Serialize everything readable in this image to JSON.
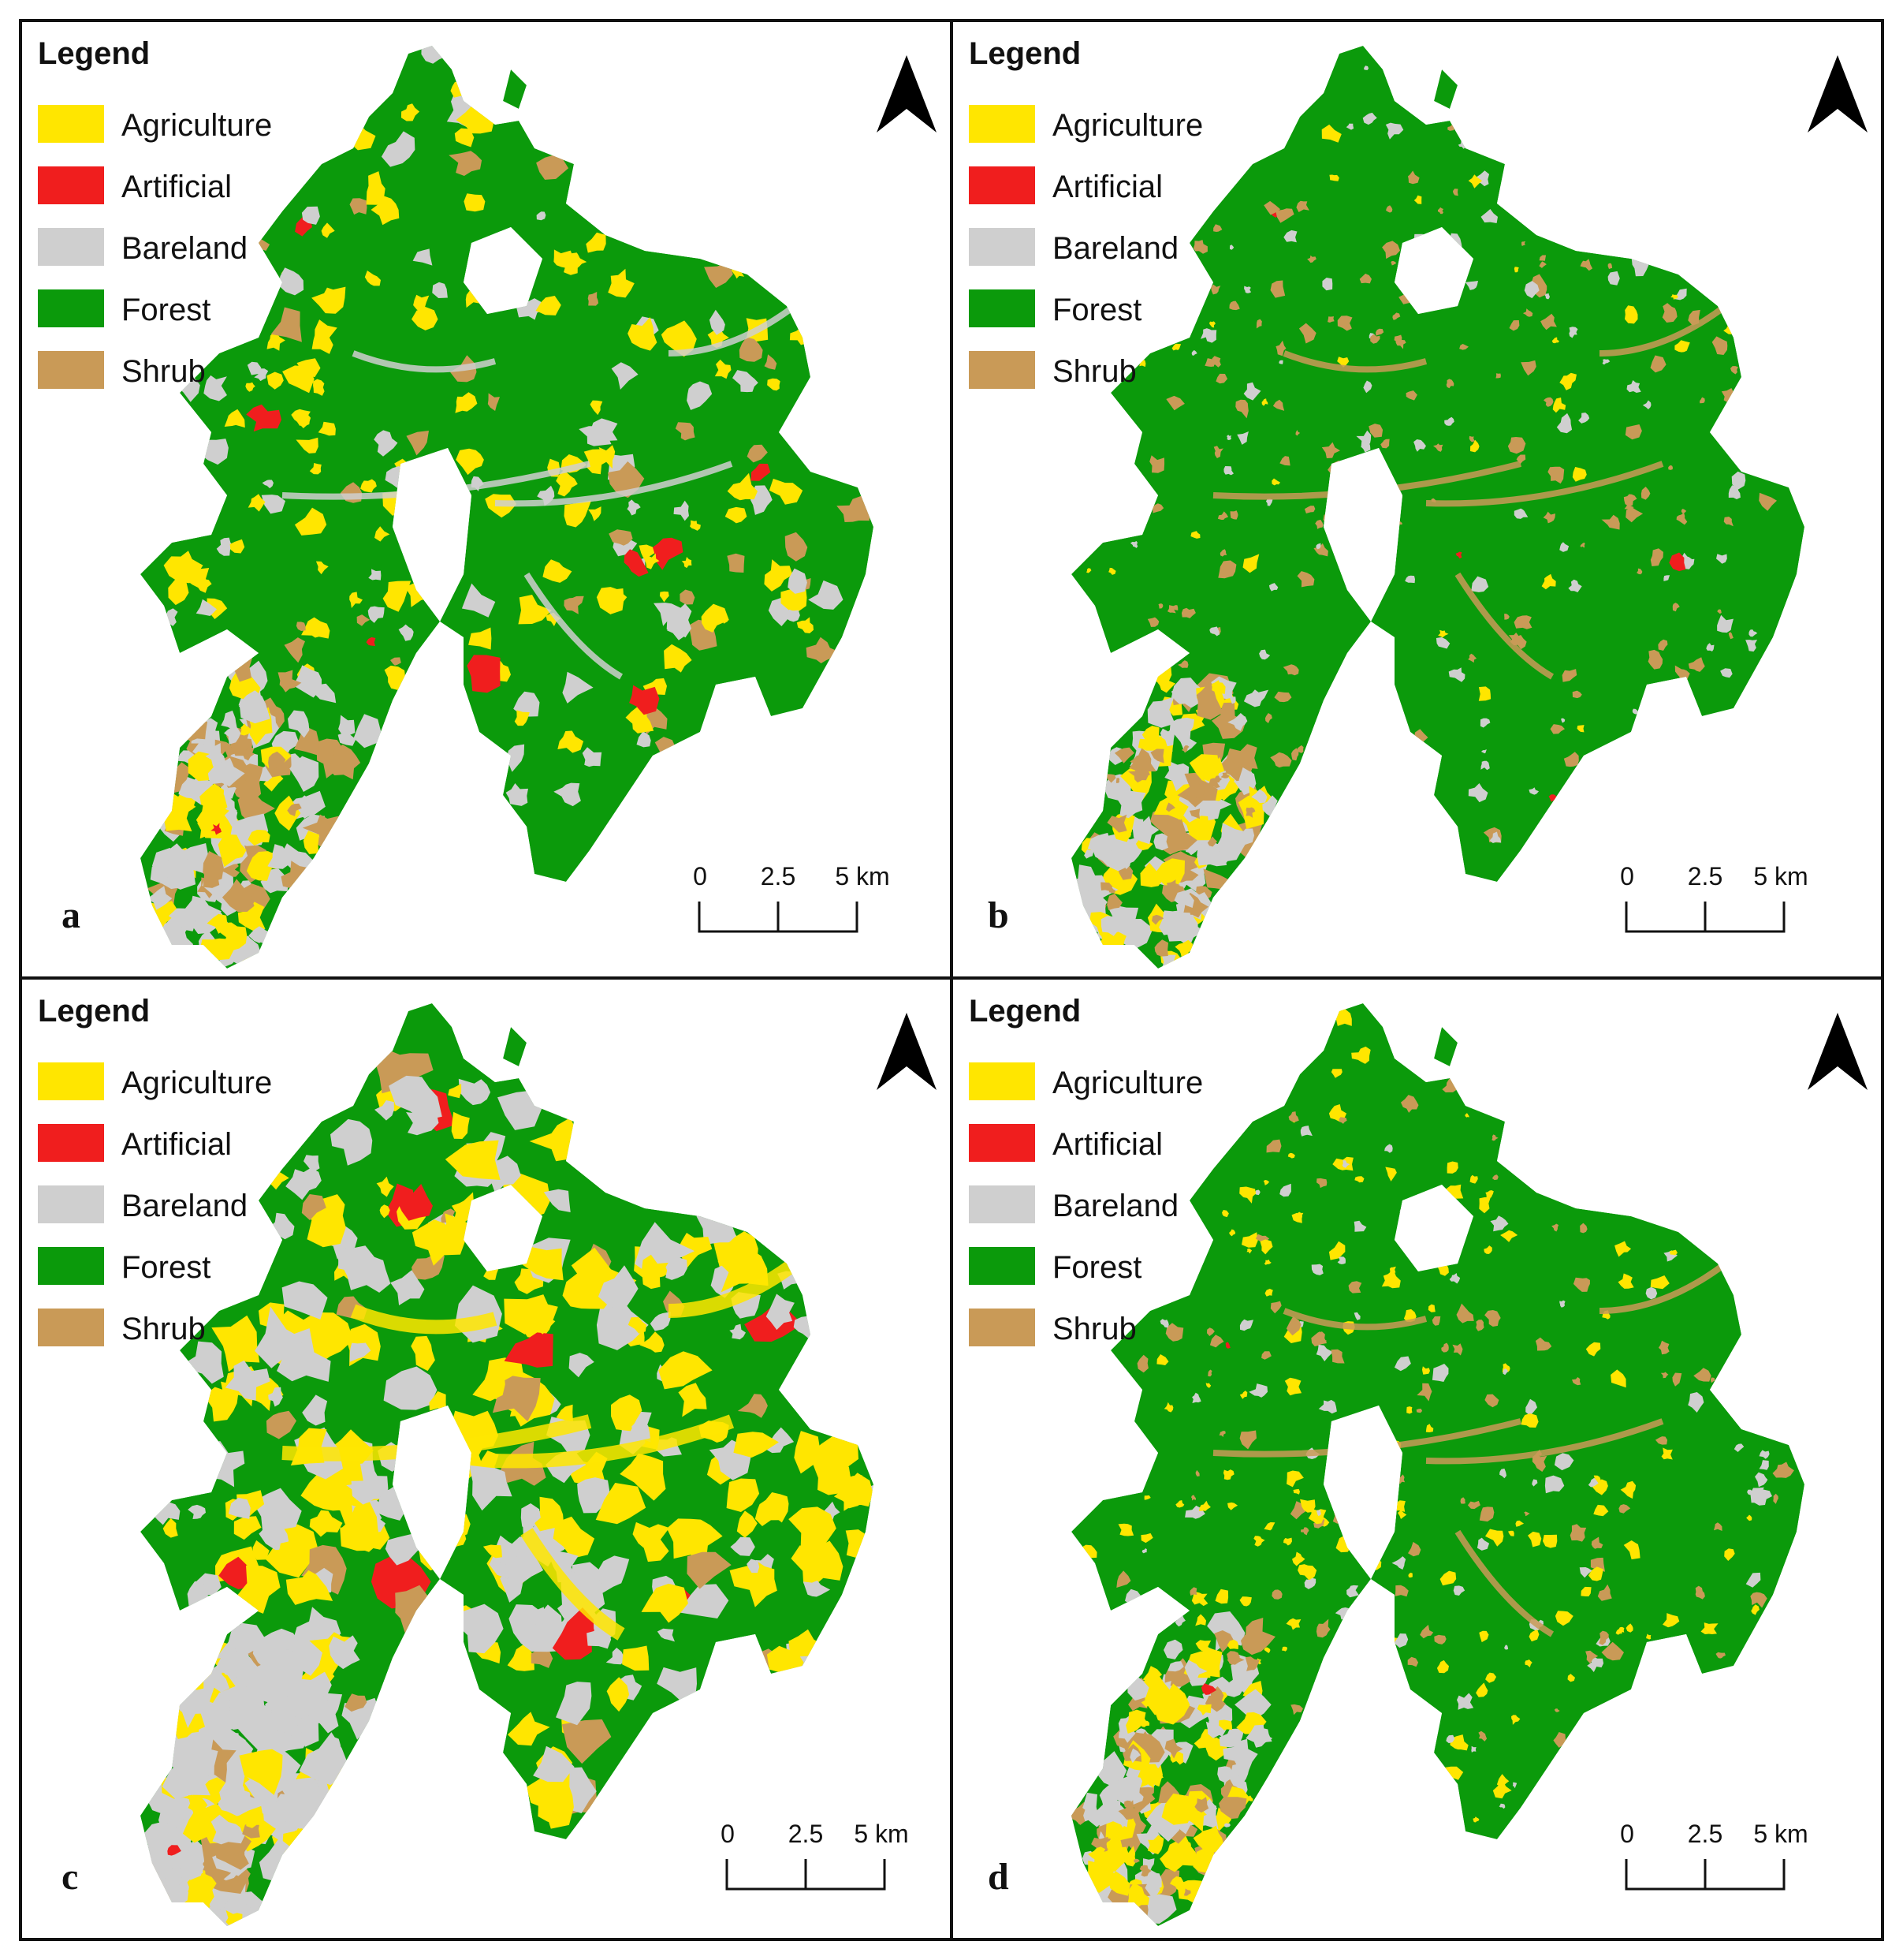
{
  "legend": {
    "title": "Legend",
    "classes": [
      {
        "label": "Agriculture",
        "color": "#ffe600"
      },
      {
        "label": "Artificial",
        "color": "#f01e1e"
      },
      {
        "label": "Bareland",
        "color": "#cfcfcf"
      },
      {
        "label": "Forest",
        "color": "#0b9a0b"
      },
      {
        "label": "Shrub",
        "color": "#c99a57"
      }
    ]
  },
  "scale": {
    "ticks": [
      "0",
      "2.5",
      "5 km"
    ]
  },
  "north_arrow": "north-arrow-icon",
  "panels": [
    {
      "id": "a",
      "label": "a"
    },
    {
      "id": "b",
      "label": "b"
    },
    {
      "id": "c",
      "label": "c"
    },
    {
      "id": "d",
      "label": "d"
    }
  ]
}
